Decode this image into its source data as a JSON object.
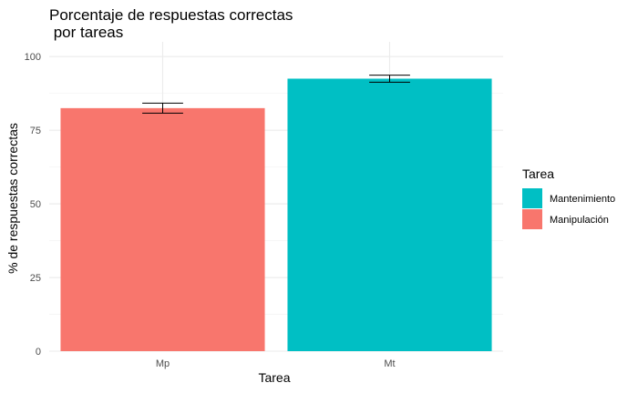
{
  "chart_data": {
    "type": "bar",
    "title_lines": [
      "Porcentaje de respuestas correctas",
      " por tareas"
    ],
    "xlabel": "Tarea",
    "ylabel": "% de respuestas correctas",
    "ylim": [
      0,
      105
    ],
    "yticks": [
      0,
      25,
      50,
      75,
      100
    ],
    "grid": true,
    "legend": {
      "title": "Tarea",
      "placement": "right",
      "entries": [
        {
          "label": "Mantenimiento",
          "color": "#00BFC4"
        },
        {
          "label": "Manipulación",
          "color": "#F8766D"
        }
      ]
    },
    "categories": [
      "Mp",
      "Mt"
    ],
    "bars": [
      {
        "category": "Mp",
        "value": 82.5,
        "err_low": 80.8,
        "err_high": 84.2,
        "color": "#F8766D"
      },
      {
        "category": "Mt",
        "value": 92.5,
        "err_low": 91.3,
        "err_high": 93.7,
        "color": "#00BFC4"
      }
    ]
  }
}
